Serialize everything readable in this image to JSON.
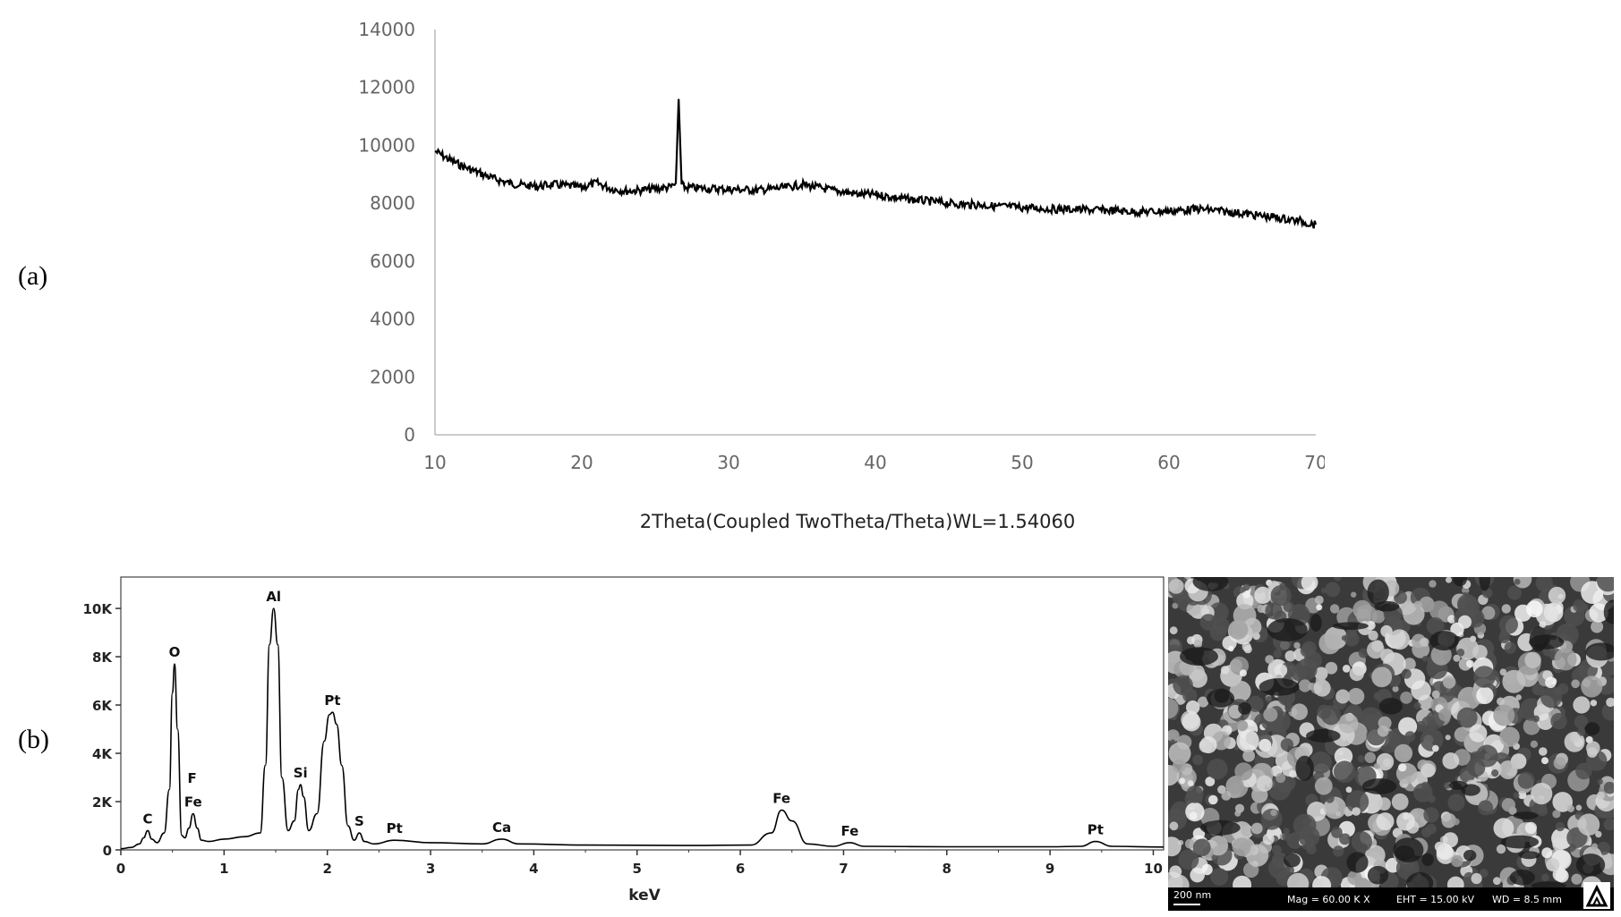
{
  "panel_labels": {
    "a": "(a)",
    "b": "(b)"
  },
  "chart_data": [
    {
      "type": "line",
      "title": "",
      "xlabel": "2Theta(Coupled TwoTheta/Theta)WL=1.54060",
      "ylabel": "",
      "xlim": [
        10,
        70
      ],
      "ylim": [
        0,
        14000
      ],
      "xticks": [
        10,
        20,
        30,
        40,
        50,
        60,
        70
      ],
      "yticks": [
        0,
        2000,
        4000,
        6000,
        8000,
        10000,
        12000,
        14000
      ],
      "grid": false,
      "series": [
        {
          "x": [
            10,
            11,
            12,
            13,
            14,
            15,
            16,
            17,
            18,
            19,
            20,
            21,
            22,
            23,
            24,
            25,
            26,
            26.4,
            26.6,
            26.8,
            27,
            28,
            29,
            30,
            31,
            32,
            33,
            34,
            35,
            36,
            37,
            38,
            39,
            40,
            41,
            42,
            43,
            44,
            45,
            46,
            47,
            48,
            49,
            50,
            52,
            54,
            56,
            58,
            60,
            61,
            62,
            63,
            64,
            65,
            66,
            67,
            68,
            69,
            70
          ],
          "y": [
            9800,
            9500,
            9250,
            9050,
            8850,
            8700,
            8620,
            8580,
            8650,
            8600,
            8550,
            8700,
            8500,
            8420,
            8450,
            8500,
            8550,
            8650,
            11600,
            8650,
            8550,
            8520,
            8500,
            8480,
            8470,
            8450,
            8500,
            8550,
            8650,
            8550,
            8450,
            8380,
            8300,
            8300,
            8220,
            8150,
            8100,
            8050,
            8000,
            7950,
            7950,
            7900,
            7880,
            7850,
            7800,
            7780,
            7750,
            7700,
            7730,
            7760,
            7800,
            7760,
            7700,
            7650,
            7580,
            7520,
            7450,
            7380,
            7250
          ]
        }
      ]
    },
    {
      "type": "line",
      "title": "",
      "xlabel": "keV",
      "ylabel": "",
      "xlim": [
        0,
        10.1
      ],
      "ylim": [
        0,
        11300
      ],
      "xticks": [
        "0",
        "1",
        "2",
        "3",
        "4",
        "5",
        "6",
        "7",
        "8",
        "9",
        "10"
      ],
      "yticks": [
        "0",
        "2K",
        "4K",
        "6K",
        "8K",
        "10K"
      ],
      "grid": false,
      "peak_labels": [
        {
          "label": "C",
          "x": 0.26,
          "y": 800
        },
        {
          "label": "O",
          "x": 0.52,
          "y": 7700
        },
        {
          "label": "F",
          "x": 0.69,
          "y": 2400
        },
        {
          "label": "Fe",
          "x": 0.7,
          "y": 1500
        },
        {
          "label": "Al",
          "x": 1.48,
          "y": 10000
        },
        {
          "label": "Si",
          "x": 1.74,
          "y": 2700
        },
        {
          "label": "Pt",
          "x": 2.05,
          "y": 5700
        },
        {
          "label": "S",
          "x": 2.31,
          "y": 700
        },
        {
          "label": "Pt",
          "x": 2.65,
          "y": 400
        },
        {
          "label": "Ca",
          "x": 3.69,
          "y": 450
        },
        {
          "label": "Fe",
          "x": 6.4,
          "y": 1650
        },
        {
          "label": "Fe",
          "x": 7.06,
          "y": 300
        },
        {
          "label": "Pt",
          "x": 9.44,
          "y": 350
        }
      ],
      "series": [
        {
          "x": [
            0,
            0.1,
            0.18,
            0.22,
            0.26,
            0.3,
            0.35,
            0.42,
            0.47,
            0.5,
            0.52,
            0.55,
            0.59,
            0.62,
            0.66,
            0.7,
            0.74,
            0.78,
            0.85,
            1.0,
            1.2,
            1.35,
            1.4,
            1.44,
            1.48,
            1.52,
            1.56,
            1.62,
            1.68,
            1.72,
            1.74,
            1.77,
            1.82,
            1.9,
            1.97,
            2.02,
            2.05,
            2.09,
            2.14,
            2.2,
            2.26,
            2.31,
            2.36,
            2.45,
            2.65,
            3.0,
            3.5,
            3.69,
            3.85,
            4.5,
            5.5,
            6.1,
            6.3,
            6.4,
            6.5,
            6.65,
            6.9,
            7.06,
            7.2,
            8.0,
            9.0,
            9.3,
            9.44,
            9.6,
            10.1
          ],
          "y": [
            50,
            100,
            250,
            500,
            800,
            450,
            300,
            700,
            2500,
            6500,
            7700,
            5000,
            600,
            500,
            900,
            1500,
            900,
            400,
            350,
            450,
            550,
            700,
            3500,
            8500,
            10000,
            8500,
            3000,
            800,
            1200,
            2500,
            2700,
            2200,
            800,
            1500,
            4500,
            5600,
            5700,
            5200,
            3500,
            1000,
            400,
            700,
            350,
            250,
            400,
            300,
            250,
            450,
            250,
            200,
            180,
            200,
            700,
            1650,
            1200,
            250,
            150,
            300,
            150,
            130,
            130,
            150,
            350,
            150,
            120
          ]
        }
      ]
    }
  ],
  "sem": {
    "scale": "200 nm",
    "mag": "Mag =   60.00 K X",
    "eht": "EHT = 15.00 kV",
    "wd": "WD =  8.5 mm"
  }
}
